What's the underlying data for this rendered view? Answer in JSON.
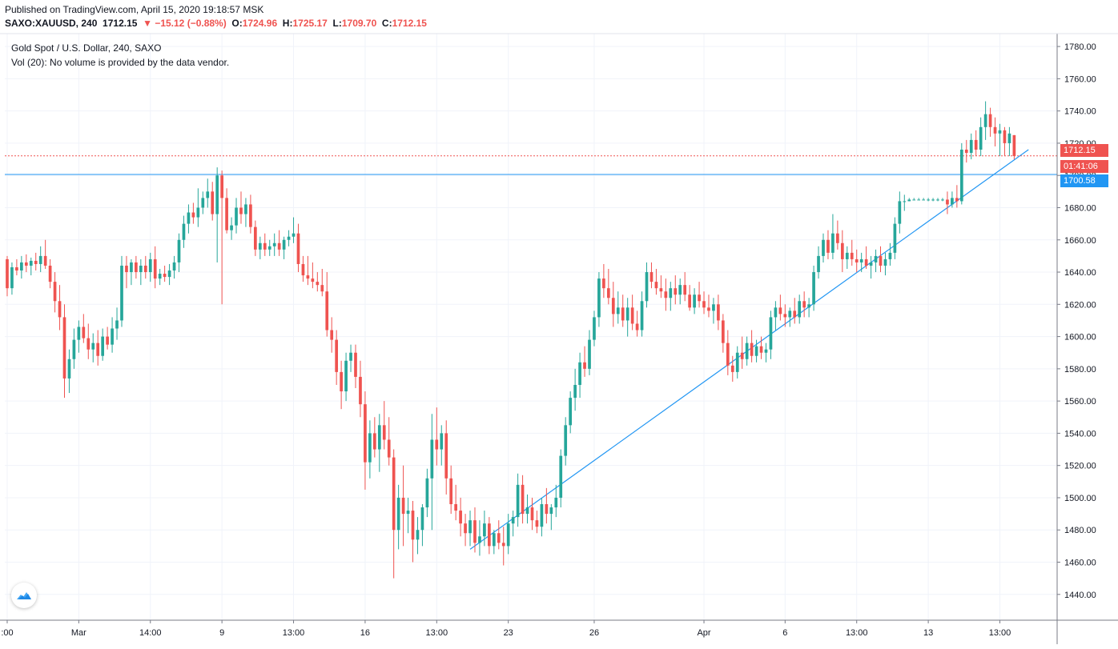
{
  "header": {
    "published": "Published on TradingView.com, April 15, 2020 19:18:57 MSK",
    "symbol": "SAXO:XAUUSD, 240",
    "last": "1712.15",
    "change": "▼ −15.12 (−0.88%)",
    "open_label": "O:",
    "open": "1724.96",
    "high_label": "H:",
    "high": "1725.17",
    "low_label": "L:",
    "low": "1709.70",
    "close_label": "C:",
    "close": "1712.15"
  },
  "legend": {
    "title": "Gold Spot / U.S. Dollar, 240, SAXO",
    "volume": "Vol (20): No volume is provided by the data vendor."
  },
  "price_tags": {
    "last": "1712.15",
    "countdown": "01:41:06",
    "line_level": "1700.58"
  },
  "icons": {
    "logo": "tradingview-logo-icon"
  },
  "colors": {
    "up": "#26a69a",
    "down": "#ef5350",
    "line": "#2196f3",
    "grid": "#f0f3fa"
  },
  "chart_data": {
    "type": "candlestick",
    "symbol": "SAXO:XAUUSD",
    "interval": "240",
    "y_ticks": [
      1440,
      1460,
      1480,
      1500,
      1520,
      1540,
      1560,
      1580,
      1600,
      1620,
      1640,
      1660,
      1680,
      1700,
      1720,
      1740,
      1760,
      1780
    ],
    "y_tick_labels": [
      "1440.00",
      "1460.00",
      "1480.00",
      "1500.00",
      "1520.00",
      "1540.00",
      "1560.00",
      "1580.00",
      "1600.00",
      "1620.00",
      "1640.00",
      "1660.00",
      "1680.00",
      "1700.00",
      "1720.00",
      "1740.00",
      "1760.00",
      "1780.00"
    ],
    "ylim": [
      1424,
      1788
    ],
    "x_ticks": [
      {
        "label": ":00",
        "idx": 0
      },
      {
        "label": "Mar",
        "idx": 15
      },
      {
        "label": "14:00",
        "idx": 30
      },
      {
        "label": "9",
        "idx": 45
      },
      {
        "label": "13:00",
        "idx": 60
      },
      {
        "label": "16",
        "idx": 75
      },
      {
        "label": "13:00",
        "idx": 90
      },
      {
        "label": "23",
        "idx": 105
      },
      {
        "label": "26",
        "idx": 123
      },
      {
        "label": "Apr",
        "idx": 146
      },
      {
        "label": "6",
        "idx": 163
      },
      {
        "label": "13:00",
        "idx": 178
      },
      {
        "label": "13",
        "idx": 193
      },
      {
        "label": "13:00",
        "idx": 208
      }
    ],
    "xlim": [
      -0.5,
      220
    ],
    "candles": [
      [
        1648,
        1650,
        1625,
        1630
      ],
      [
        1630,
        1646,
        1626,
        1643
      ],
      [
        1643,
        1648,
        1638,
        1641
      ],
      [
        1641,
        1650,
        1636,
        1646
      ],
      [
        1646,
        1651,
        1640,
        1644
      ],
      [
        1644,
        1649,
        1638,
        1647
      ],
      [
        1647,
        1652,
        1641,
        1645
      ],
      [
        1645,
        1656,
        1640,
        1650
      ],
      [
        1650,
        1660,
        1642,
        1644
      ],
      [
        1644,
        1648,
        1630,
        1634
      ],
      [
        1634,
        1640,
        1615,
        1622
      ],
      [
        1622,
        1632,
        1604,
        1612
      ],
      [
        1612,
        1620,
        1562,
        1574
      ],
      [
        1574,
        1592,
        1565,
        1586
      ],
      [
        1586,
        1605,
        1580,
        1598
      ],
      [
        1598,
        1610,
        1590,
        1606
      ],
      [
        1606,
        1614,
        1596,
        1599
      ],
      [
        1599,
        1608,
        1586,
        1592
      ],
      [
        1592,
        1602,
        1584,
        1596
      ],
      [
        1596,
        1604,
        1582,
        1588
      ],
      [
        1588,
        1605,
        1585,
        1600
      ],
      [
        1600,
        1606,
        1592,
        1595
      ],
      [
        1595,
        1612,
        1590,
        1605
      ],
      [
        1605,
        1618,
        1598,
        1610
      ],
      [
        1610,
        1650,
        1606,
        1644
      ],
      [
        1644,
        1650,
        1630,
        1640
      ],
      [
        1640,
        1648,
        1632,
        1646
      ],
      [
        1646,
        1650,
        1636,
        1640
      ],
      [
        1640,
        1648,
        1632,
        1644
      ],
      [
        1644,
        1650,
        1636,
        1640
      ],
      [
        1640,
        1652,
        1634,
        1648
      ],
      [
        1648,
        1656,
        1630,
        1636
      ],
      [
        1636,
        1642,
        1632,
        1639
      ],
      [
        1639,
        1644,
        1634,
        1637
      ],
      [
        1637,
        1645,
        1632,
        1641
      ],
      [
        1641,
        1650,
        1636,
        1646
      ],
      [
        1646,
        1664,
        1640,
        1660
      ],
      [
        1660,
        1675,
        1655,
        1670
      ],
      [
        1670,
        1682,
        1664,
        1677
      ],
      [
        1677,
        1683,
        1670,
        1674
      ],
      [
        1674,
        1692,
        1668,
        1680
      ],
      [
        1680,
        1690,
        1676,
        1686
      ],
      [
        1686,
        1698,
        1680,
        1690
      ],
      [
        1690,
        1696,
        1672,
        1676
      ],
      [
        1676,
        1705,
        1646,
        1700
      ],
      [
        1700,
        1703,
        1620,
        1686
      ],
      [
        1686,
        1692,
        1664,
        1666
      ],
      [
        1666,
        1674,
        1660,
        1669
      ],
      [
        1669,
        1686,
        1664,
        1680
      ],
      [
        1680,
        1690,
        1670,
        1676
      ],
      [
        1676,
        1686,
        1668,
        1682
      ],
      [
        1682,
        1688,
        1664,
        1668
      ],
      [
        1668,
        1672,
        1650,
        1654
      ],
      [
        1654,
        1662,
        1648,
        1658
      ],
      [
        1658,
        1664,
        1650,
        1654
      ],
      [
        1654,
        1660,
        1650,
        1656
      ],
      [
        1656,
        1664,
        1650,
        1658
      ],
      [
        1658,
        1666,
        1650,
        1654
      ],
      [
        1654,
        1662,
        1648,
        1660
      ],
      [
        1660,
        1666,
        1656,
        1662
      ],
      [
        1662,
        1674,
        1658,
        1664
      ],
      [
        1664,
        1670,
        1640,
        1645
      ],
      [
        1645,
        1650,
        1634,
        1638
      ],
      [
        1638,
        1650,
        1632,
        1636
      ],
      [
        1636,
        1646,
        1630,
        1634
      ],
      [
        1634,
        1640,
        1628,
        1632
      ],
      [
        1632,
        1642,
        1625,
        1628
      ],
      [
        1628,
        1640,
        1600,
        1604
      ],
      [
        1604,
        1612,
        1590,
        1598
      ],
      [
        1598,
        1604,
        1570,
        1578
      ],
      [
        1578,
        1585,
        1555,
        1566
      ],
      [
        1566,
        1590,
        1560,
        1585
      ],
      [
        1585,
        1595,
        1578,
        1590
      ],
      [
        1590,
        1595,
        1568,
        1575
      ],
      [
        1575,
        1585,
        1550,
        1558
      ],
      [
        1558,
        1566,
        1505,
        1522
      ],
      [
        1522,
        1548,
        1512,
        1540
      ],
      [
        1540,
        1550,
        1525,
        1530
      ],
      [
        1530,
        1552,
        1516,
        1545
      ],
      [
        1545,
        1560,
        1530,
        1536
      ],
      [
        1536,
        1550,
        1520,
        1525
      ],
      [
        1525,
        1530,
        1450,
        1480
      ],
      [
        1480,
        1508,
        1468,
        1500
      ],
      [
        1500,
        1520,
        1470,
        1490
      ],
      [
        1490,
        1500,
        1478,
        1492
      ],
      [
        1492,
        1498,
        1460,
        1474
      ],
      [
        1474,
        1488,
        1465,
        1480
      ],
      [
        1480,
        1496,
        1470,
        1494
      ],
      [
        1494,
        1518,
        1488,
        1512
      ],
      [
        1512,
        1552,
        1480,
        1536
      ],
      [
        1536,
        1556,
        1520,
        1530
      ],
      [
        1530,
        1545,
        1520,
        1540
      ],
      [
        1540,
        1548,
        1502,
        1512
      ],
      [
        1512,
        1520,
        1490,
        1496
      ],
      [
        1496,
        1508,
        1486,
        1492
      ],
      [
        1492,
        1500,
        1476,
        1484
      ],
      [
        1484,
        1490,
        1470,
        1478
      ],
      [
        1478,
        1492,
        1470,
        1486
      ],
      [
        1486,
        1494,
        1466,
        1472
      ],
      [
        1472,
        1486,
        1464,
        1476
      ],
      [
        1476,
        1492,
        1470,
        1484
      ],
      [
        1484,
        1488,
        1465,
        1470
      ],
      [
        1470,
        1480,
        1465,
        1478
      ],
      [
        1478,
        1486,
        1468,
        1472
      ],
      [
        1472,
        1482,
        1458,
        1470
      ],
      [
        1470,
        1490,
        1465,
        1484
      ],
      [
        1484,
        1492,
        1476,
        1488
      ],
      [
        1488,
        1515,
        1482,
        1508
      ],
      [
        1508,
        1514,
        1484,
        1490
      ],
      [
        1490,
        1502,
        1484,
        1494
      ],
      [
        1494,
        1500,
        1480,
        1486
      ],
      [
        1486,
        1492,
        1478,
        1482
      ],
      [
        1482,
        1500,
        1476,
        1496
      ],
      [
        1496,
        1506,
        1484,
        1490
      ],
      [
        1490,
        1496,
        1480,
        1494
      ],
      [
        1494,
        1508,
        1488,
        1500
      ],
      [
        1500,
        1530,
        1494,
        1526
      ],
      [
        1526,
        1550,
        1520,
        1545
      ],
      [
        1545,
        1566,
        1540,
        1562
      ],
      [
        1562,
        1580,
        1554,
        1570
      ],
      [
        1570,
        1590,
        1562,
        1584
      ],
      [
        1584,
        1594,
        1575,
        1580
      ],
      [
        1580,
        1604,
        1576,
        1598
      ],
      [
        1598,
        1616,
        1594,
        1612
      ],
      [
        1612,
        1640,
        1606,
        1636
      ],
      [
        1636,
        1645,
        1624,
        1630
      ],
      [
        1630,
        1642,
        1620,
        1624
      ],
      [
        1624,
        1634,
        1606,
        1614
      ],
      [
        1614,
        1628,
        1608,
        1618
      ],
      [
        1618,
        1626,
        1606,
        1610
      ],
      [
        1610,
        1624,
        1600,
        1618
      ],
      [
        1618,
        1626,
        1604,
        1608
      ],
      [
        1608,
        1616,
        1600,
        1604
      ],
      [
        1604,
        1628,
        1600,
        1622
      ],
      [
        1622,
        1646,
        1618,
        1640
      ],
      [
        1640,
        1646,
        1630,
        1634
      ],
      [
        1634,
        1642,
        1626,
        1630
      ],
      [
        1630,
        1638,
        1624,
        1628
      ],
      [
        1628,
        1636,
        1616,
        1624
      ],
      [
        1624,
        1634,
        1616,
        1630
      ],
      [
        1630,
        1638,
        1620,
        1626
      ],
      [
        1626,
        1636,
        1620,
        1632
      ],
      [
        1632,
        1640,
        1622,
        1626
      ],
      [
        1626,
        1632,
        1616,
        1618
      ],
      [
        1618,
        1630,
        1614,
        1626
      ],
      [
        1626,
        1634,
        1618,
        1622
      ],
      [
        1622,
        1628,
        1614,
        1618
      ],
      [
        1618,
        1626,
        1612,
        1616
      ],
      [
        1616,
        1624,
        1608,
        1620
      ],
      [
        1620,
        1626,
        1604,
        1610
      ],
      [
        1610,
        1614,
        1590,
        1596
      ],
      [
        1596,
        1604,
        1576,
        1582
      ],
      [
        1582,
        1588,
        1572,
        1578
      ],
      [
        1578,
        1594,
        1574,
        1590
      ],
      [
        1590,
        1600,
        1580,
        1586
      ],
      [
        1586,
        1600,
        1582,
        1596
      ],
      [
        1596,
        1604,
        1584,
        1588
      ],
      [
        1588,
        1598,
        1584,
        1594
      ],
      [
        1594,
        1600,
        1586,
        1590
      ],
      [
        1590,
        1596,
        1584,
        1592
      ],
      [
        1592,
        1616,
        1586,
        1612
      ],
      [
        1612,
        1622,
        1604,
        1618
      ],
      [
        1618,
        1626,
        1610,
        1614
      ],
      [
        1614,
        1620,
        1606,
        1612
      ],
      [
        1612,
        1618,
        1606,
        1616
      ],
      [
        1616,
        1624,
        1608,
        1612
      ],
      [
        1612,
        1626,
        1608,
        1622
      ],
      [
        1622,
        1628,
        1612,
        1618
      ],
      [
        1618,
        1624,
        1612,
        1620
      ],
      [
        1620,
        1644,
        1616,
        1640
      ],
      [
        1640,
        1656,
        1636,
        1650
      ],
      [
        1650,
        1664,
        1646,
        1660
      ],
      [
        1660,
        1666,
        1648,
        1652
      ],
      [
        1652,
        1676,
        1648,
        1664
      ],
      [
        1664,
        1672,
        1654,
        1658
      ],
      [
        1658,
        1666,
        1640,
        1648
      ],
      [
        1648,
        1656,
        1642,
        1652
      ],
      [
        1652,
        1660,
        1644,
        1648
      ],
      [
        1648,
        1654,
        1640,
        1646
      ],
      [
        1646,
        1652,
        1640,
        1648
      ],
      [
        1648,
        1656,
        1642,
        1644
      ],
      [
        1644,
        1650,
        1636,
        1646
      ],
      [
        1646,
        1654,
        1640,
        1650
      ],
      [
        1650,
        1656,
        1640,
        1644
      ],
      [
        1644,
        1652,
        1638,
        1648
      ],
      [
        1648,
        1658,
        1644,
        1652
      ],
      [
        1652,
        1674,
        1648,
        1670
      ],
      [
        1670,
        1690,
        1664,
        1684
      ],
      [
        1684,
        1688,
        1678,
        1684
      ],
      [
        1684,
        1686,
        1684,
        1685
      ],
      [
        1685,
        1686,
        1685,
        1685
      ],
      [
        1685,
        1686,
        1685,
        1685
      ],
      [
        1685,
        1686,
        1685,
        1685
      ],
      [
        1685,
        1686,
        1684,
        1685
      ],
      [
        1685,
        1686,
        1684,
        1685
      ],
      [
        1685,
        1686,
        1684,
        1685
      ],
      [
        1685,
        1686,
        1684,
        1685
      ],
      [
        1685,
        1690,
        1676,
        1682
      ],
      [
        1682,
        1690,
        1680,
        1686
      ],
      [
        1686,
        1694,
        1680,
        1684
      ],
      [
        1684,
        1720,
        1682,
        1716
      ],
      [
        1716,
        1722,
        1708,
        1714
      ],
      [
        1714,
        1726,
        1710,
        1722
      ],
      [
        1722,
        1728,
        1712,
        1716
      ],
      [
        1716,
        1736,
        1712,
        1730
      ],
      [
        1730,
        1746,
        1722,
        1738
      ],
      [
        1738,
        1742,
        1724,
        1730
      ],
      [
        1730,
        1736,
        1718,
        1726
      ],
      [
        1726,
        1732,
        1712,
        1728
      ],
      [
        1728,
        1730,
        1712,
        1720
      ],
      [
        1720,
        1730,
        1712,
        1726
      ],
      [
        1725,
        1725,
        1710,
        1712
      ]
    ],
    "horizontal_lines": [
      {
        "name": "support-resistance",
        "value": 1700.58,
        "color": "#2196f3"
      },
      {
        "name": "last-price",
        "value": 1712.15,
        "color": "#ef5350",
        "dashed": true
      }
    ],
    "trendline": {
      "from": {
        "idx": 97,
        "value": 1468
      },
      "to": {
        "idx": 214,
        "value": 1716
      }
    },
    "grid": true
  }
}
